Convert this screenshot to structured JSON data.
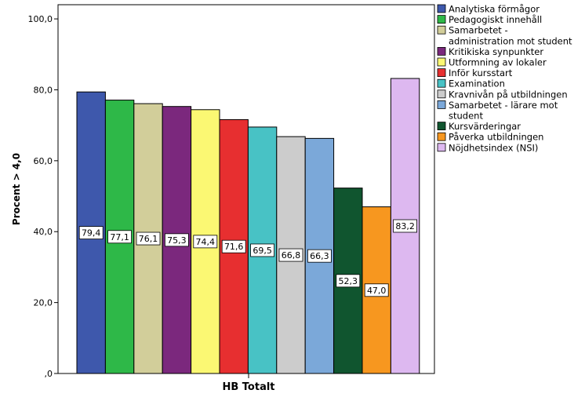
{
  "chart_data": {
    "type": "bar",
    "title": "",
    "xlabel": "",
    "ylabel": "Procent > 4,0",
    "category": "HB Totalt",
    "ylim": [
      0,
      104
    ],
    "yticks": [
      {
        "value": 0,
        "label": ",0"
      },
      {
        "value": 20,
        "label": "20,0"
      },
      {
        "value": 40,
        "label": "40,0"
      },
      {
        "value": 60,
        "label": "60,0"
      },
      {
        "value": 80,
        "label": "80,0"
      },
      {
        "value": 100,
        "label": "100,0"
      }
    ],
    "grid": false,
    "legend_position": "right",
    "series": [
      {
        "name": "Analytiska förmågor",
        "legend_lines": [
          "Analytiska förmågor"
        ],
        "value": 79.4,
        "label": "79,4",
        "color": "#3e58ac"
      },
      {
        "name": "Pedagogiskt innehåll",
        "legend_lines": [
          "Pedagogiskt innehåll"
        ],
        "value": 77.1,
        "label": "77,1",
        "color": "#2eb848"
      },
      {
        "name": "Samarbetet - administration mot student",
        "legend_lines": [
          "Samarbetet -",
          "administration mot student"
        ],
        "value": 76.1,
        "label": "76,1",
        "color": "#d2ce9a"
      },
      {
        "name": "Kritikiska synpunkter",
        "legend_lines": [
          "Kritikiska synpunkter"
        ],
        "value": 75.3,
        "label": "75,3",
        "color": "#7b287d"
      },
      {
        "name": "Utformning av lokaler",
        "legend_lines": [
          "Utformning av lokaler"
        ],
        "value": 74.4,
        "label": "74,4",
        "color": "#fbf873"
      },
      {
        "name": "Inför kursstart",
        "legend_lines": [
          "Inför kursstart"
        ],
        "value": 71.6,
        "label": "71,6",
        "color": "#e72f30"
      },
      {
        "name": "Examination",
        "legend_lines": [
          "Examination"
        ],
        "value": 69.5,
        "label": "69,5",
        "color": "#48c2c5"
      },
      {
        "name": "Kravnivån på utbildningen",
        "legend_lines": [
          "Kravnivån på utbildningen"
        ],
        "value": 66.8,
        "label": "66,8",
        "color": "#cccccc"
      },
      {
        "name": "Samarbetet - lärare mot student",
        "legend_lines": [
          "Samarbetet - lärare mot",
          "student"
        ],
        "value": 66.3,
        "label": "66,3",
        "color": "#7ba8d9"
      },
      {
        "name": "Kursvärderingar",
        "legend_lines": [
          "Kursvärderingar"
        ],
        "value": 52.3,
        "label": "52,3",
        "color": "#10552f"
      },
      {
        "name": "Påverka utbildningen",
        "legend_lines": [
          "Påverka utbildningen"
        ],
        "value": 47.0,
        "label": "47,0",
        "color": "#f7971f"
      },
      {
        "name": "Nöjdhetsindex (NSI)",
        "legend_lines": [
          "Nöjdhetsindex (NSI)"
        ],
        "value": 83.2,
        "label": "83,2",
        "color": "#ddb8f0"
      }
    ]
  }
}
